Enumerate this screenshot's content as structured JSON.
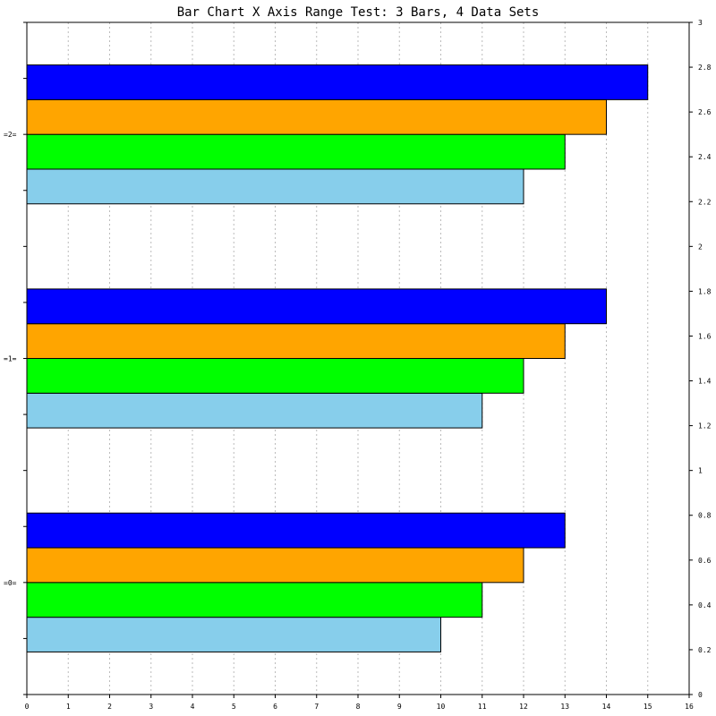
{
  "chart_data": {
    "type": "bar",
    "orientation": "horizontal",
    "title": "Bar Chart X Axis Range Test: 3 Bars, 4 Data Sets",
    "categories": [
      "=0=",
      "=1=",
      "=2="
    ],
    "series": [
      {
        "color": "#87ceeb",
        "values": [
          10,
          11,
          12
        ]
      },
      {
        "color": "#00ff00",
        "values": [
          11,
          12,
          13
        ]
      },
      {
        "color": "#ffa500",
        "values": [
          12,
          13,
          14
        ]
      },
      {
        "color": "#0000ff",
        "values": [
          13,
          14,
          15
        ]
      }
    ],
    "xlim": [
      0,
      16
    ],
    "x_ticks": [
      "0",
      "1",
      "2",
      "3",
      "4",
      "5",
      "6",
      "7",
      "8",
      "9",
      "10",
      "11",
      "12",
      "13",
      "14",
      "15",
      "16"
    ],
    "y2lim": [
      0,
      3
    ],
    "y2_ticks": [
      "0",
      "0.2",
      "0.4",
      "0.6",
      "0.8",
      "1",
      "1.2",
      "1.4",
      "1.6",
      "1.8",
      "2",
      "2.2",
      "2.4",
      "2.6",
      "2.8",
      "3"
    ],
    "grid": "vertical-dotted",
    "grid_color": "#bbbbbb"
  }
}
